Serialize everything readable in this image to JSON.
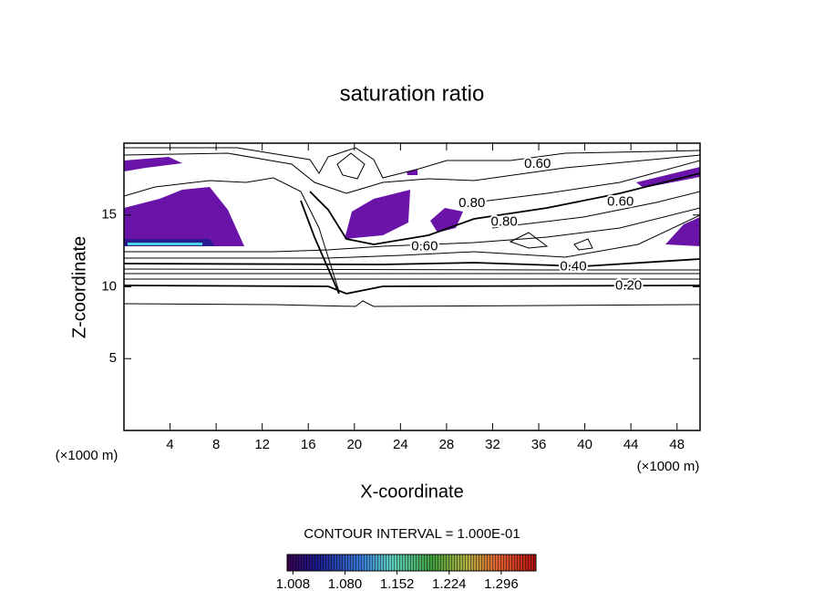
{
  "chart_data": {
    "type": "contour",
    "title": "saturation ratio",
    "x_label": "X-coordinate",
    "y_label": "Z-coordinate",
    "x_unit": "(×1000 m)",
    "y_unit": "(×1000 m)",
    "xlim": [
      0,
      50
    ],
    "xticks": [
      4,
      8,
      12,
      16,
      20,
      24,
      28,
      32,
      36,
      40,
      44,
      48
    ],
    "ylim": [
      0,
      20
    ],
    "yticks": [
      5,
      10,
      15
    ],
    "contour_interval": "CONTOUR INTERVAL = 1.000E-01",
    "contour_labels": [
      {
        "value": 0.6,
        "label": "0.60",
        "x": 35.9,
        "y": 18.55
      },
      {
        "value": 0.8,
        "label": "0.80",
        "x": 30.2,
        "y": 15.8
      },
      {
        "value": 0.8,
        "label": "0.80",
        "x": 33.0,
        "y": 14.5
      },
      {
        "value": 0.6,
        "label": "0.60",
        "x": 43.1,
        "y": 15.9
      },
      {
        "value": 0.6,
        "label": "0.60",
        "x": 26.1,
        "y": 12.8
      },
      {
        "value": 0.4,
        "label": "0.40",
        "x": 39.0,
        "y": 11.4
      },
      {
        "value": 0.2,
        "label": "0.20",
        "x": 43.8,
        "y": 10.05
      }
    ],
    "colorbar": {
      "lim": [
        1.0,
        1.344
      ],
      "ticks": [
        1.008,
        {
          "value": 1.08,
          "label": "1.080"
        },
        1.152,
        1.224,
        1.296
      ]
    }
  }
}
